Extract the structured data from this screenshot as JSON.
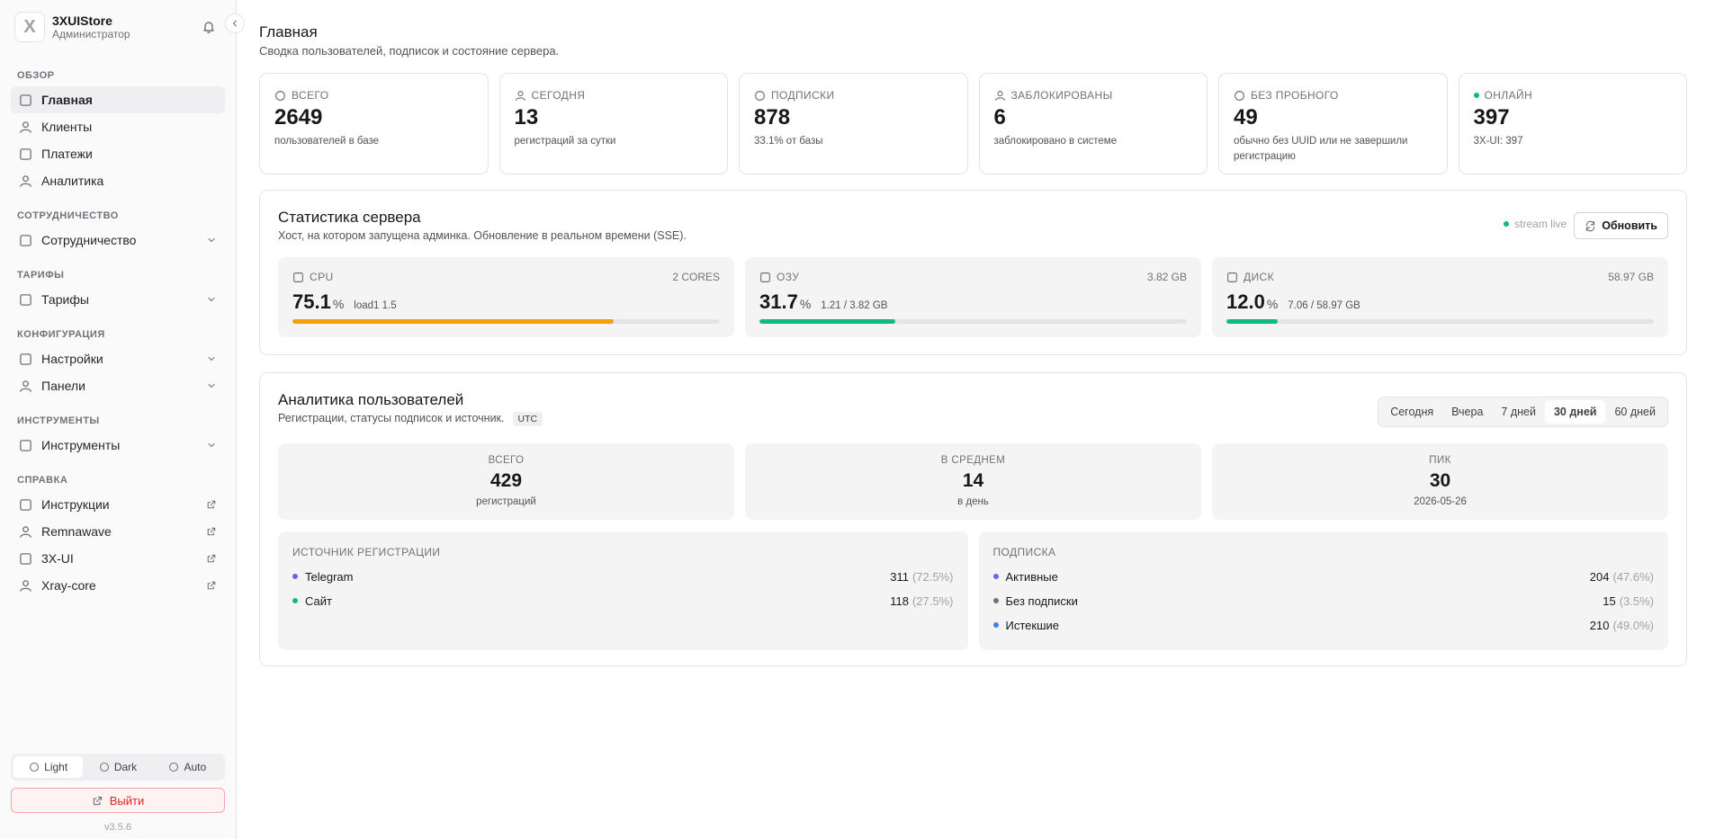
{
  "sidebar": {
    "brand": {
      "name": "3XUIStore",
      "role": "Администратор",
      "logo": "X"
    },
    "sections": [
      {
        "title": "ОБЗОР",
        "items": [
          {
            "label": "Главная",
            "active": true
          },
          {
            "label": "Клиенты"
          },
          {
            "label": "Платежи"
          },
          {
            "label": "Аналитика"
          }
        ]
      },
      {
        "title": "СОТРУДНИЧЕСТВО",
        "items": [
          {
            "label": "Сотрудничество",
            "expandable": true
          }
        ]
      },
      {
        "title": "ТАРИФЫ",
        "items": [
          {
            "label": "Тарифы",
            "expandable": true
          }
        ]
      },
      {
        "title": "КОНФИГУРАЦИЯ",
        "items": [
          {
            "label": "Настройки",
            "expandable": true
          },
          {
            "label": "Панели",
            "expandable": true
          }
        ]
      },
      {
        "title": "ИНСТРУМЕНТЫ",
        "items": [
          {
            "label": "Инструменты",
            "expandable": true
          }
        ]
      },
      {
        "title": "СПРАВКА",
        "items": [
          {
            "label": "Инструкции",
            "external": true
          },
          {
            "label": "Remnawave",
            "external": true
          },
          {
            "label": "3X-UI",
            "external": true
          },
          {
            "label": "Xray-core",
            "external": true
          }
        ]
      }
    ],
    "theme": {
      "options": [
        "Light",
        "Dark",
        "Auto"
      ],
      "active": 0
    },
    "logout": "Выйти",
    "version": "v3.5.6"
  },
  "header": {
    "title": "Главная",
    "subtitle": "Сводка пользователей, подписок и состояние сервера."
  },
  "stats": [
    {
      "label": "ВСЕГО",
      "value": 2649,
      "note": "пользователей в базе"
    },
    {
      "label": "СЕГОДНЯ",
      "value": 13,
      "note": "регистраций за сутки"
    },
    {
      "label": "ПОДПИСКИ",
      "value": 878,
      "note": "33.1% от базы"
    },
    {
      "label": "ЗАБЛОКИРОВАНЫ",
      "value": 6,
      "note": "заблокировано в системе"
    },
    {
      "label": "БЕЗ ПРОБНОГО",
      "value": 49,
      "note": "обычно без UUID или не завершили регистрацию"
    },
    {
      "label": "ОНЛАЙН",
      "value": 397,
      "note": "3X-UI: 397",
      "live": true
    }
  ],
  "server": {
    "title": "Статистика сервера",
    "subtitle": "Хост, на котором запущена админка. Обновление в реальном времени (SSE).",
    "live": "stream live",
    "refresh": "Обновить",
    "metrics": [
      {
        "label": "CPU",
        "spec": "2 CORES",
        "value": "75.1",
        "unit": "%",
        "extra": "load1 1.5",
        "color": "#f59e0b"
      },
      {
        "label": "ОЗУ",
        "spec": "3.82 GB",
        "value": "31.7",
        "unit": "%",
        "extra": "1.21 / 3.82 GB",
        "color": "#10b981"
      },
      {
        "label": "ДИСК",
        "spec": "58.97 GB",
        "value": "12.0",
        "unit": "%",
        "extra": "7.06 / 58.97 GB",
        "color": "#10b981"
      }
    ]
  },
  "analytics": {
    "title": "Аналитика пользователей",
    "subtitle": "Регистрации, статусы подписок и источник.",
    "tz": "UTC",
    "ranges": [
      "Сегодня",
      "Вчера",
      "7 дней",
      "30 дней",
      "60 дней"
    ],
    "active_range": 3,
    "summary": [
      {
        "label": "ВСЕГО",
        "value": 429,
        "note": "регистраций"
      },
      {
        "label": "В СРЕДНЕМ",
        "value": 14,
        "note": "в день"
      },
      {
        "label": "ПИК",
        "value": 30,
        "note": "2026-05-26"
      }
    ],
    "panels": [
      {
        "title": "ИСТОЧНИК РЕГИСТРАЦИИ",
        "rows": [
          {
            "name": "Telegram",
            "count": 311,
            "pct": "(72.5%)",
            "color": "#6366f1"
          },
          {
            "name": "Сайт",
            "count": 118,
            "pct": "(27.5%)",
            "color": "#10b981"
          }
        ]
      },
      {
        "title": "ПОДПИСКА",
        "rows": [
          {
            "name": "Активные",
            "count": 204,
            "pct": "(47.6%)",
            "color": "#6366f1"
          },
          {
            "name": "Без подписки",
            "count": 15,
            "pct": "(3.5%)",
            "color": "#71717a"
          },
          {
            "name": "Истекшие",
            "count": 210,
            "pct": "(49.0%)",
            "color": "#3b82f6"
          }
        ]
      }
    ]
  }
}
